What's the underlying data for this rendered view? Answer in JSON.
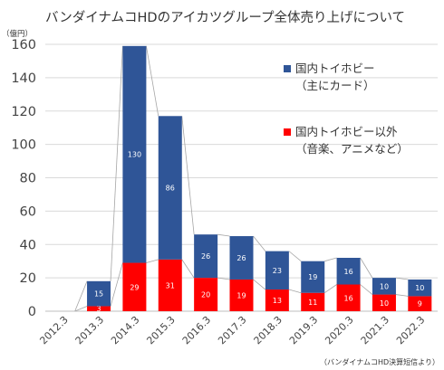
{
  "chart_data": {
    "type": "bar",
    "stacked": true,
    "title": "バンダイナムコHDのアイカツグループ全体売り上げについて",
    "unit_label": "（億円）",
    "source_note": "（バンダイナムコHD決算短信より）",
    "categories": [
      "2012.3",
      "2013.3",
      "2014.3",
      "2015.3",
      "2016.3",
      "2017.3",
      "2018.3",
      "2019.3",
      "2020.3",
      "2021.3",
      "2022.3"
    ],
    "series": [
      {
        "name": "国内トイホビー以外（音楽、アニメなど）",
        "legend_lines": [
          "国内トイホビー以外",
          "（音楽、アニメなど）"
        ],
        "color": "#ff0000",
        "values": [
          0,
          3,
          29,
          31,
          20,
          19,
          13,
          11,
          16,
          10,
          9
        ],
        "labels": [
          "",
          "3",
          "29",
          "31",
          "20",
          "19",
          "13",
          "11",
          "16",
          "10",
          "9"
        ]
      },
      {
        "name": "国内トイホビー（主にカード）",
        "legend_lines": [
          "国内トイホビー",
          "（主にカード）"
        ],
        "color": "#2f5597",
        "values": [
          0,
          15,
          130,
          86,
          26,
          26,
          23,
          19,
          16,
          10,
          10
        ],
        "labels": [
          "",
          "15",
          "130",
          "86",
          "26",
          "26",
          "23",
          "19",
          "16",
          "10",
          "10"
        ]
      }
    ],
    "ylim": [
      0,
      160
    ],
    "yticks": [
      0,
      20,
      40,
      60,
      80,
      100,
      120,
      140,
      160
    ],
    "grid": true,
    "legend_position": "right"
  }
}
